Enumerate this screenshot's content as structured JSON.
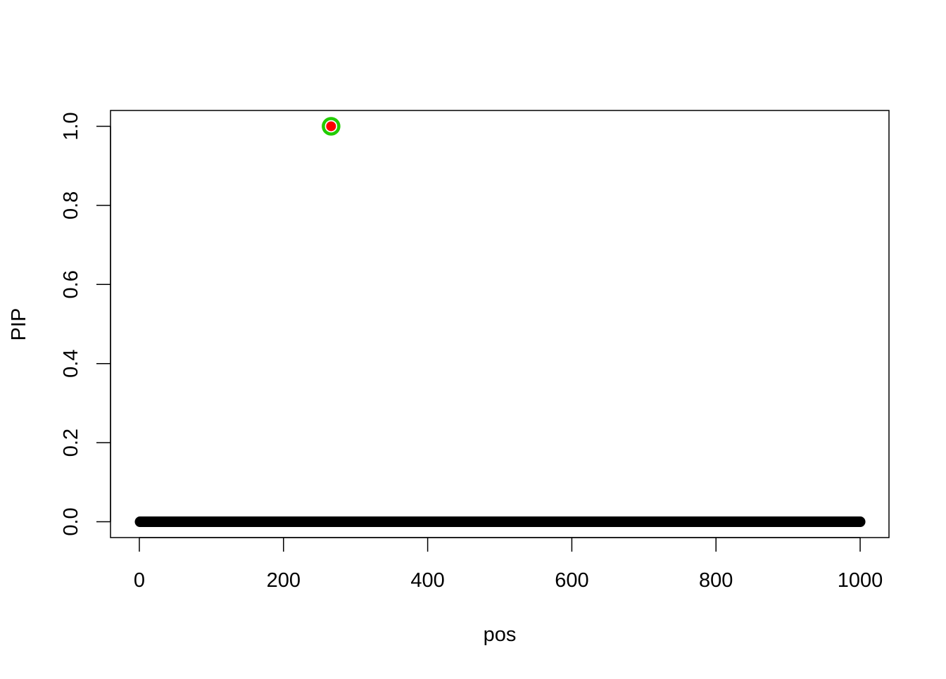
{
  "chart_data": {
    "type": "scatter",
    "xlabel": "pos",
    "ylabel": "PIP",
    "xlim": [
      -40,
      1040
    ],
    "ylim": [
      -0.04,
      1.04
    ],
    "x_ticks": [
      0,
      200,
      400,
      600,
      800,
      1000
    ],
    "y_ticks": [
      0.0,
      0.2,
      0.4,
      0.6,
      0.8,
      1.0
    ],
    "x_tick_labels": [
      "0",
      "200",
      "400",
      "600",
      "800",
      "1000"
    ],
    "y_tick_labels": [
      "0.0",
      "0.2",
      "0.4",
      "0.6",
      "0.8",
      "1.0"
    ],
    "grid": false,
    "points": {
      "x_from": 1,
      "x_to": 1000,
      "y": 0,
      "color": "#000000"
    },
    "highlighted_points": [
      {
        "x": 266,
        "y": 1.0,
        "fill": "#ff0000",
        "ring": "#22cc00"
      }
    ]
  }
}
